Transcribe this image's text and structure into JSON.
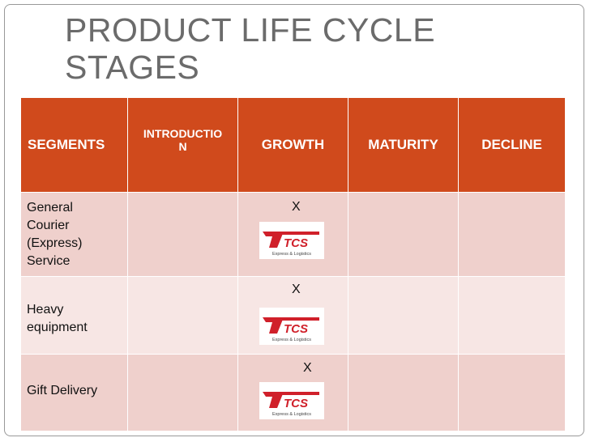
{
  "title": "PRODUCT LIFE CYCLE STAGES",
  "table": {
    "header": [
      "SEGMENTS",
      "INTRODUCTION",
      "GROWTH",
      "MATURITY",
      "DECLINE"
    ],
    "rows": [
      {
        "segment": "General Courier (Express) Service",
        "growth": "X"
      },
      {
        "segment": "Heavy equipment",
        "growth": "X"
      },
      {
        "segment": "Gift Delivery",
        "growth": "X"
      }
    ]
  },
  "logo": {
    "name": "TCS",
    "tagline": "Express & Logistics"
  }
}
